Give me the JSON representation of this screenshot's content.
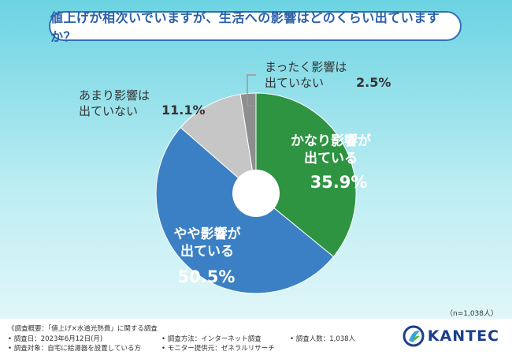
{
  "title": "値上げが相次いでいますが、生活への影響はどのくらい出ていますか？",
  "sample_size": "（n=1,038人）",
  "colors": {
    "green": "#2e9442",
    "blue": "#3b80c4",
    "light_gray": "#c6c6c6",
    "dark_gray": "#8e8e8e",
    "title_blue": "#2a5fa8"
  },
  "chart_data": {
    "type": "pie",
    "donut": true,
    "slices": [
      {
        "label_line1": "かなり影響が",
        "label_line2": "出ている",
        "value": 35.9,
        "display": "35.9%",
        "color": "#2e9442"
      },
      {
        "label_line1": "やや影響が",
        "label_line2": "出ている",
        "value": 50.5,
        "display": "50.5%",
        "color": "#3b80c4"
      },
      {
        "label_line1": "あまり影響は",
        "label_line2": "出ていない",
        "value": 11.1,
        "display": "11.1%",
        "color": "#c6c6c6"
      },
      {
        "label_line1": "まったく影響は",
        "label_line2": "出ていない",
        "value": 2.5,
        "display": "2.5%",
        "color": "#8e8e8e"
      }
    ]
  },
  "footer": {
    "overview": "《調査概要：「値上げ×水道光熱費」に関する調査",
    "date": "• 調査日：2023年6月12日(月)",
    "target": "• 調査対象：自宅に給湯器を設置している方",
    "method": "• 調査方法：インターネット調査",
    "provider": "• モニター提供元：ゼネラルリサーチ",
    "count": "• 調査人数：1,038人"
  },
  "logo": {
    "text": "KANTEC",
    "icon": "kantec-logo-icon"
  }
}
